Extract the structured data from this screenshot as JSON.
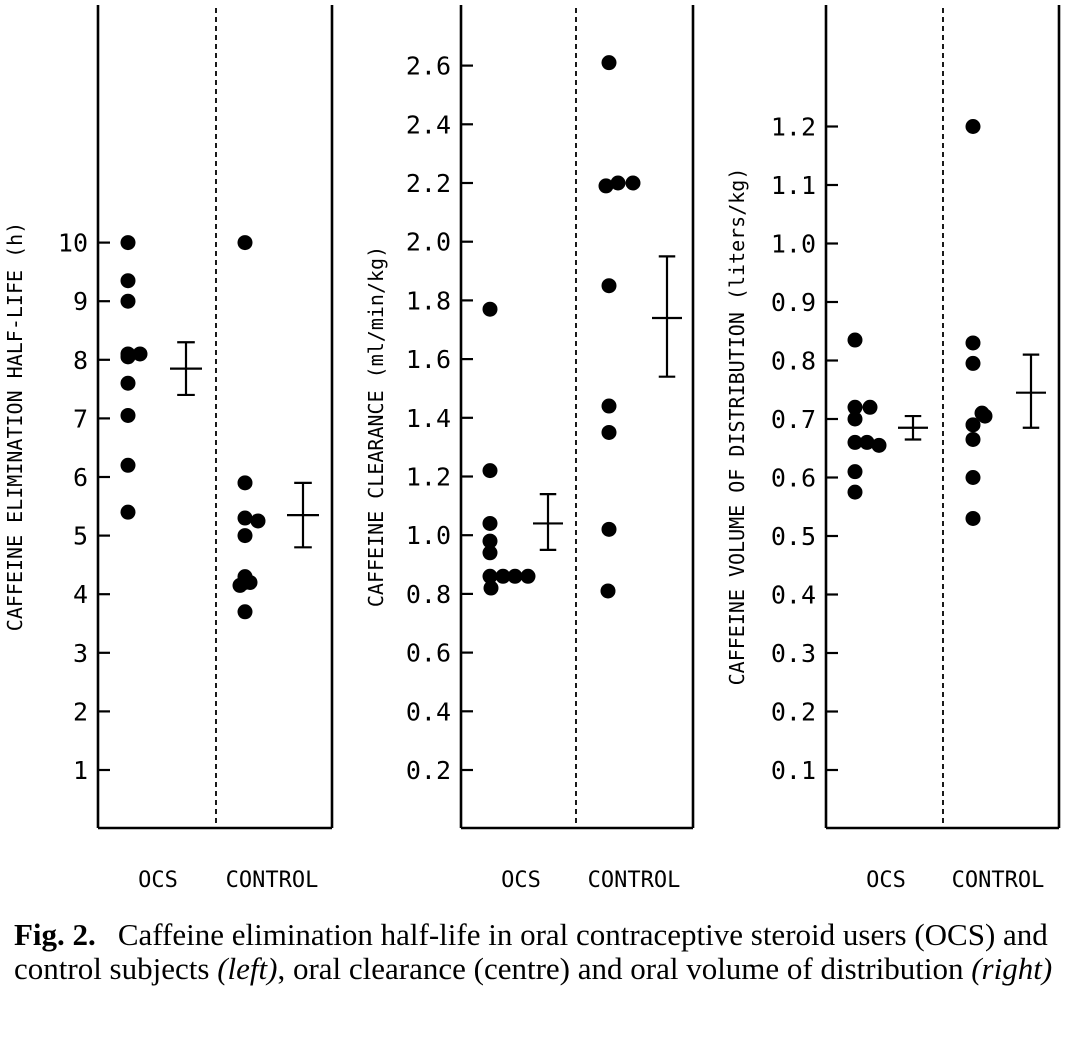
{
  "chart_data": [
    {
      "type": "scatter",
      "ylabel": "CAFFEINE ELIMINATION HALF-LIFE (h)",
      "yticks": [
        "1",
        "2",
        "3",
        "4",
        "5",
        "6",
        "7",
        "8",
        "9",
        "10"
      ],
      "ylim": [
        0,
        14
      ],
      "categories": [
        "OCS",
        "CONTROL"
      ],
      "series": [
        {
          "values": [
            10.0,
            9.35,
            9.0,
            8.05,
            8.1,
            8.1,
            7.6,
            7.05,
            6.2,
            5.4
          ]
        },
        {
          "values": [
            10.0,
            5.9,
            5.3,
            5.0,
            5.25,
            4.3,
            4.2,
            4.2,
            4.15,
            3.7
          ]
        }
      ],
      "summary": [
        {
          "mean": 7.85,
          "low": 7.4,
          "high": 8.3
        },
        {
          "mean": 5.35,
          "low": 4.8,
          "high": 5.9
        }
      ]
    },
    {
      "type": "scatter",
      "ylabel": "CAFFEINE CLEARANCE (ml/min/kg)",
      "yticks": [
        "0.2",
        "0.4",
        "0.6",
        "0.8",
        "1.0",
        "1.2",
        "1.4",
        "1.6",
        "1.8",
        "2.0",
        "2.2",
        "2.4",
        "2.6"
      ],
      "ylim": [
        0,
        2.8
      ],
      "categories": [
        "OCS",
        "CONTROL"
      ],
      "series": [
        {
          "values": [
            1.77,
            1.22,
            1.04,
            0.98,
            0.94,
            0.86,
            0.86,
            0.86,
            0.86,
            0.82
          ]
        },
        {
          "values": [
            2.61,
            2.19,
            2.2,
            2.2,
            1.85,
            1.44,
            1.35,
            1.02,
            0.81
          ]
        }
      ],
      "summary": [
        {
          "mean": 1.04,
          "low": 0.95,
          "high": 1.14
        },
        {
          "mean": 1.74,
          "low": 1.54,
          "high": 1.95
        }
      ]
    },
    {
      "type": "scatter",
      "ylabel": "CAFFEINE VOLUME OF DISTRIBUTION (liters/kg)",
      "yticks": [
        "0.1",
        "0.2",
        "0.3",
        "0.4",
        "0.5",
        "0.6",
        "0.7",
        "0.8",
        "0.9",
        "1.0",
        "1.1",
        "1.2"
      ],
      "ylim": [
        0,
        1.4
      ],
      "categories": [
        "OCS",
        "CONTROL"
      ],
      "series": [
        {
          "values": [
            0.835,
            0.72,
            0.72,
            0.7,
            0.66,
            0.66,
            0.655,
            0.61,
            0.575
          ]
        },
        {
          "values": [
            1.2,
            0.83,
            0.795,
            0.71,
            0.705,
            0.69,
            0.665,
            0.6,
            0.53
          ]
        }
      ],
      "summary": [
        {
          "mean": 0.685,
          "low": 0.665,
          "high": 0.705
        },
        {
          "mean": 0.745,
          "low": 0.685,
          "high": 0.81
        }
      ]
    }
  ],
  "caption": {
    "fig_label": "Fig. 2.",
    "part1": "Caffeine elimination half-life in oral contraceptive steroid users (OCS) and control subjects ",
    "em1": "(left)",
    "part2": ", oral clearance (centre) and oral volume of distribution ",
    "em2": "(right)"
  }
}
